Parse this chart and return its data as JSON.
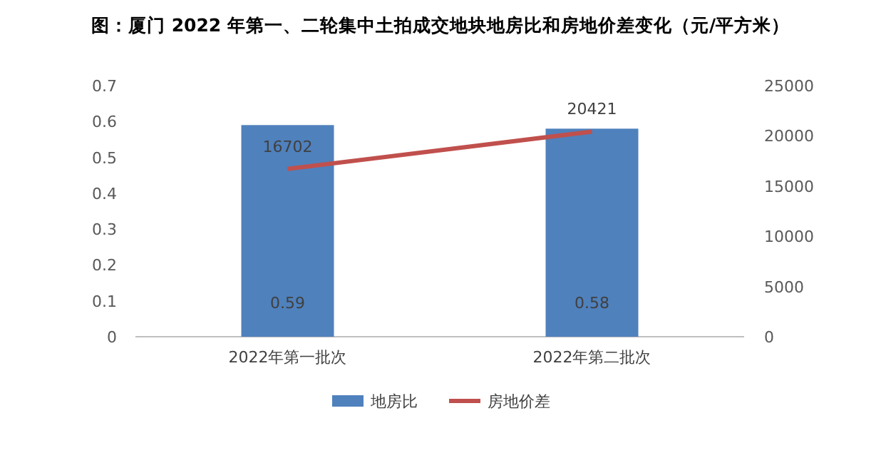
{
  "chart_data": {
    "type": "bar",
    "title": "图：厦门 2022 年第一、二轮集中土拍成交地块地房比和房地价差变化（元/平方米）",
    "categories": [
      "2022年第一批次",
      "2022年第二批次"
    ],
    "series": [
      {
        "name": "地房比",
        "color": "#4f81bd",
        "values": [
          0.59,
          0.58
        ]
      },
      {
        "name": "房地价差",
        "type": "line",
        "axis": "y2",
        "color": "#c0504d",
        "values": [
          16702,
          20421
        ]
      }
    ],
    "ylim": [
      0,
      0.7
    ],
    "yticks": [
      0,
      0.1,
      0.2,
      0.3,
      0.4,
      0.5,
      0.6,
      0.7
    ],
    "y2lim": [
      0,
      25000
    ],
    "y2ticks": [
      0,
      5000,
      10000,
      15000,
      20000,
      25000
    ],
    "data_labels": true,
    "legend": "bottom"
  }
}
